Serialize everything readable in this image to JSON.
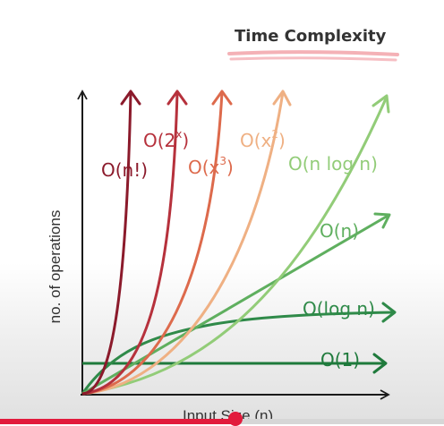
{
  "title": "Time Complexity",
  "axes": {
    "ylabel": "no. of operations",
    "xlabel": "Input Size (n)"
  },
  "curves": [
    {
      "id": "factorial",
      "label": "O(n!)",
      "color": "#8b1a2b"
    },
    {
      "id": "exp2",
      "label_base": "O(2",
      "label_sup": "x",
      "label_close": ")",
      "color": "#b6313c"
    },
    {
      "id": "cubic",
      "label_base": "O(x",
      "label_sup": "3",
      "label_close": ")",
      "color": "#dd6a4c"
    },
    {
      "id": "quadratic",
      "label_base": "O(x",
      "label_sup": "2",
      "label_close": ")",
      "color": "#efb083"
    },
    {
      "id": "nlogn",
      "label": "O(n log n)",
      "color": "#92cc78"
    },
    {
      "id": "linear",
      "label": "O(n)",
      "color": "#5faf5f"
    },
    {
      "id": "log",
      "label": "O(log n)",
      "color": "#2f8a49"
    },
    {
      "id": "constant",
      "label": "O(1)",
      "color": "#1f7a3c"
    }
  ],
  "colors": {
    "axis": "#1a1a1a",
    "title_highlight": "#f2a3a9",
    "progress": "#e21b3c"
  },
  "video_progress": 0.53
}
